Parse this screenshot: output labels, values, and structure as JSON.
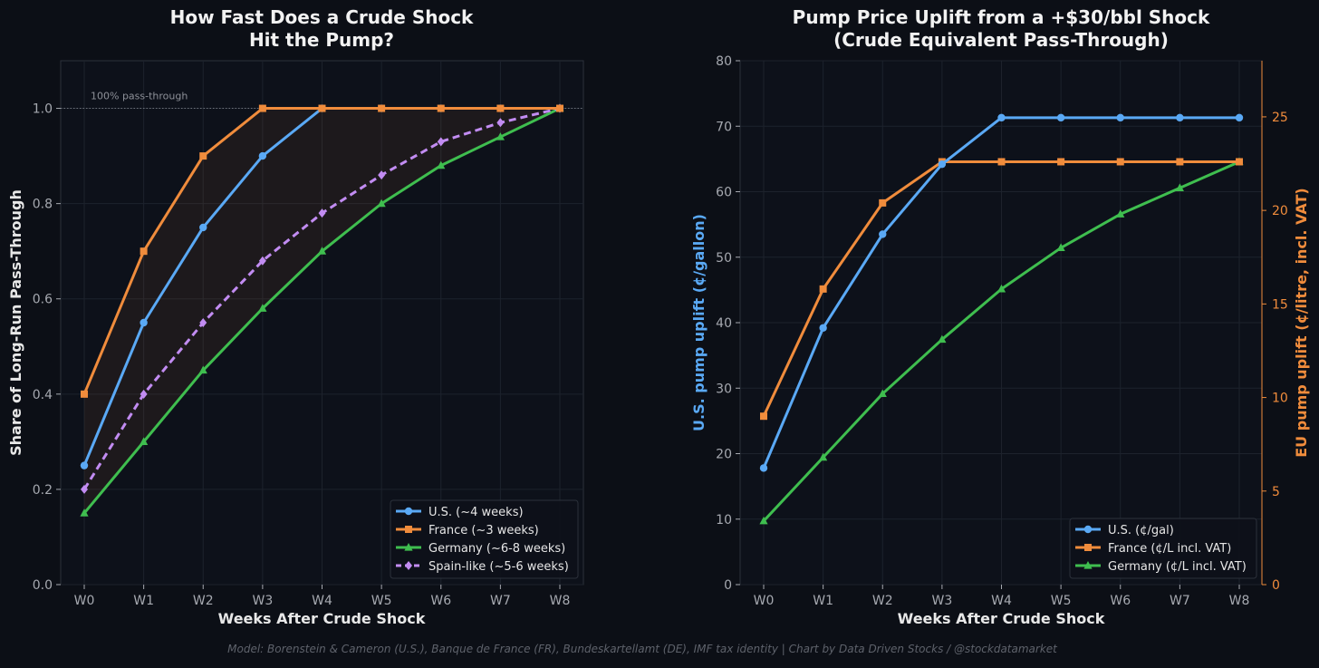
{
  "footer": "Model: Borenstein & Cameron (U.S.), Banque de France (FR), Bundeskartellamt (DE), IMF tax identity  |  Chart by Data Driven Stocks / @stockdatamarket",
  "colors": {
    "background": "#0c0f16",
    "plot_bg": "#0d111a",
    "us": "#5aa9f5",
    "france": "#f08c3c",
    "germany": "#3fbe4f",
    "spain": "#c28cf2",
    "band": "#f08c3c"
  },
  "chart_data": [
    {
      "type": "line",
      "title_lines": [
        "How Fast Does a Crude Shock",
        "Hit the Pump?"
      ],
      "xlabel": "Weeks After Crude Shock",
      "ylabel": "Share of Long-Run Pass-Through",
      "categories": [
        "W0",
        "W1",
        "W2",
        "W3",
        "W4",
        "W5",
        "W6",
        "W7",
        "W8"
      ],
      "ylim": [
        0,
        1.1
      ],
      "yticks": [
        0.0,
        0.2,
        0.4,
        0.6,
        0.8,
        1.0
      ],
      "ytick_labels": [
        "0.0",
        "0.2",
        "0.4",
        "0.6",
        "0.8",
        "1.0"
      ],
      "grid": true,
      "reference_line": {
        "y": 1.0,
        "label": "100% pass-through"
      },
      "shaded_band": {
        "between": [
          "France (~3 weeks)",
          "Germany (~6-8 weeks)"
        ]
      },
      "legend_position": "lower-right",
      "series": [
        {
          "name": "U.S. (~4 weeks)",
          "color_key": "us",
          "marker": "circle",
          "dashed": false,
          "values": [
            0.25,
            0.55,
            0.75,
            0.9,
            1.0,
            1.0,
            1.0,
            1.0,
            1.0
          ]
        },
        {
          "name": "France (~3 weeks)",
          "color_key": "france",
          "marker": "square",
          "dashed": false,
          "values": [
            0.4,
            0.7,
            0.9,
            1.0,
            1.0,
            1.0,
            1.0,
            1.0,
            1.0
          ]
        },
        {
          "name": "Germany (~6-8 weeks)",
          "color_key": "germany",
          "marker": "triangle",
          "dashed": false,
          "values": [
            0.15,
            0.3,
            0.45,
            0.58,
            0.7,
            0.8,
            0.88,
            0.94,
            1.0
          ]
        },
        {
          "name": "Spain-like (~5-6 weeks)",
          "color_key": "spain",
          "marker": "diamond",
          "dashed": true,
          "values": [
            0.2,
            0.4,
            0.55,
            0.68,
            0.78,
            0.86,
            0.93,
            0.97,
            1.0
          ]
        }
      ]
    },
    {
      "type": "line",
      "title_lines": [
        "Pump Price Uplift from a +$30/bbl Shock",
        "(Crude Equivalent Pass-Through)"
      ],
      "xlabel": "Weeks After Crude Shock",
      "ylabel_left": "U.S. pump uplift (¢/gallon)",
      "ylabel_right": "EU pump uplift (¢/litre, incl. VAT)",
      "categories": [
        "W0",
        "W1",
        "W2",
        "W3",
        "W4",
        "W5",
        "W6",
        "W7",
        "W8"
      ],
      "ylim_left": [
        0,
        80
      ],
      "yticks_left": [
        0,
        10,
        20,
        30,
        40,
        50,
        60,
        70,
        80
      ],
      "ytick_labels_left": [
        "0",
        "10",
        "20",
        "30",
        "40",
        "50",
        "60",
        "70",
        "80"
      ],
      "ylim_right": [
        0,
        28
      ],
      "yticks_right": [
        0,
        5,
        10,
        15,
        20,
        25
      ],
      "ytick_labels_right": [
        "0",
        "5",
        "10",
        "15",
        "20",
        "25"
      ],
      "grid": true,
      "legend_position": "lower-right",
      "series": [
        {
          "name": "U.S. (¢/gal)",
          "color_key": "us",
          "marker": "circle",
          "axis": "left",
          "values": [
            17.8,
            39.2,
            53.5,
            64.2,
            71.3,
            71.3,
            71.3,
            71.3,
            71.3
          ]
        },
        {
          "name": "France (¢/L incl. VAT)",
          "color_key": "france",
          "marker": "square",
          "axis": "right",
          "values": [
            9.0,
            15.8,
            20.4,
            22.6,
            22.6,
            22.6,
            22.6,
            22.6,
            22.6
          ]
        },
        {
          "name": "Germany (¢/L incl. VAT)",
          "color_key": "germany",
          "marker": "triangle",
          "axis": "right",
          "values": [
            3.4,
            6.8,
            10.2,
            13.1,
            15.8,
            18.0,
            19.8,
            21.2,
            22.6
          ]
        }
      ]
    }
  ]
}
